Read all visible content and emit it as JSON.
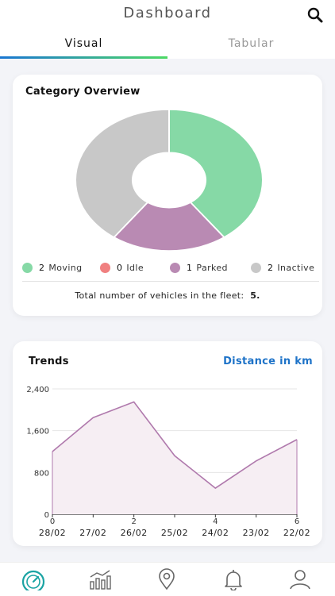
{
  "header": {
    "title": "Dashboard",
    "search_icon": "search-icon"
  },
  "tabs": [
    {
      "label": "Visual",
      "active": true
    },
    {
      "label": "Tabular",
      "active": false
    }
  ],
  "overview": {
    "title": "Category Overview",
    "legend": [
      {
        "count": "2",
        "label": "Moving",
        "color": "#86d9a6"
      },
      {
        "count": "0",
        "label": "Idle",
        "color": "#f08080"
      },
      {
        "count": "1",
        "label": "Parked",
        "color": "#b98ab3"
      },
      {
        "count": "2",
        "label": "Inactive",
        "color": "#c8c8c8"
      }
    ],
    "total_label": "Total number of vehicles in the fleet:",
    "total_value": "5."
  },
  "trends": {
    "title": "Trends",
    "metric_link": "Distance in km"
  },
  "chart_data": [
    {
      "type": "pie",
      "categories": [
        "Moving",
        "Idle",
        "Parked",
        "Inactive"
      ],
      "values": [
        2,
        0,
        1,
        2
      ],
      "colors": [
        "#86d9a6",
        "#f08080",
        "#b98ab3",
        "#c8c8c8"
      ],
      "donut": true,
      "legend_position": "bottom"
    },
    {
      "type": "area",
      "x": [
        0,
        1,
        2,
        3,
        4,
        5,
        6
      ],
      "y": [
        1200,
        1850,
        2150,
        1120,
        500,
        1020,
        1430
      ],
      "x_tick_labels": [
        "0",
        "",
        "2",
        "",
        "4",
        "",
        "6"
      ],
      "date_labels": [
        "28/02",
        "27/02",
        "26/02",
        "25/02",
        "24/02",
        "23/02",
        "22/02"
      ],
      "y_ticks": [
        0,
        800,
        1600,
        2400
      ],
      "y_tick_labels": [
        "0",
        "800",
        "1,600",
        "2,400"
      ],
      "ylim": [
        0,
        2400
      ],
      "xlim": [
        0,
        6
      ],
      "grid": true,
      "line_color": "#b07aad",
      "fill_color": "#f6eef3"
    }
  ],
  "nav": [
    {
      "name": "dashboard-icon",
      "active": true
    },
    {
      "name": "reports-icon",
      "active": false
    },
    {
      "name": "location-icon",
      "active": false
    },
    {
      "name": "alerts-icon",
      "active": false
    },
    {
      "name": "profile-icon",
      "active": false
    }
  ]
}
